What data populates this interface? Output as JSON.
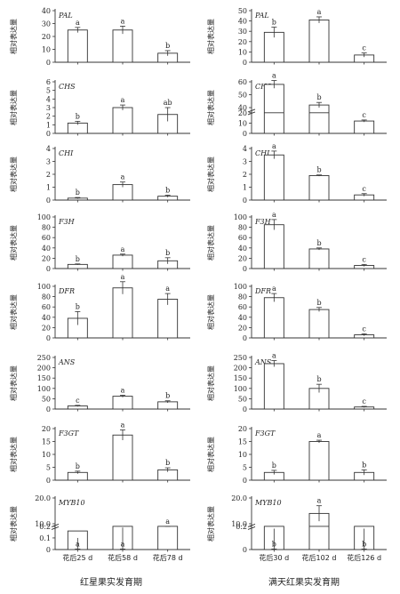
{
  "figure": {
    "x_axis_title_left": "红星果实发育期",
    "x_axis_title_right": "满天红果实发育期",
    "ylabel": "相对表达量"
  },
  "colors": {
    "bar_fill": "#ffffff",
    "stroke": "#333333",
    "text": "#222222"
  },
  "chart_data": [
    {
      "id": "PAL-left",
      "cultivar": "红星",
      "gene": "PAL",
      "type": "bar",
      "ylabel": "相对表达量",
      "ylim": [
        0,
        40
      ],
      "ticks": [
        0,
        10,
        20,
        30,
        40
      ],
      "categories": [
        "花后25 d",
        "花后58 d",
        "花后78 d"
      ],
      "values": [
        25,
        25,
        7
      ],
      "errors": [
        2,
        3,
        2
      ],
      "letters": [
        "a",
        "a",
        "b"
      ]
    },
    {
      "id": "PAL-right",
      "cultivar": "满天红",
      "gene": "PAL",
      "type": "bar",
      "ylabel": "相对表达量",
      "ylim": [
        0,
        50
      ],
      "ticks": [
        0,
        10,
        20,
        30,
        40,
        50
      ],
      "categories": [
        "花后30 d",
        "花后102 d",
        "花后126 d"
      ],
      "values": [
        29,
        41,
        7
      ],
      "errors": [
        5,
        3,
        2
      ],
      "letters": [
        "b",
        "a",
        "c"
      ]
    },
    {
      "id": "CHS-left",
      "cultivar": "红星",
      "gene": "CHS",
      "type": "bar",
      "ylabel": "相对表达量",
      "ylim": [
        0,
        6
      ],
      "ticks": [
        0,
        1,
        2,
        3,
        4,
        5,
        6
      ],
      "categories": [
        "花后25 d",
        "花后58 d",
        "花后78 d"
      ],
      "values": [
        1.2,
        3.0,
        2.2
      ],
      "errors": [
        0.2,
        0.3,
        0.8
      ],
      "letters": [
        "b",
        "a",
        "ab"
      ]
    },
    {
      "id": "CHS-right",
      "cultivar": "满天红",
      "gene": "CHS",
      "type": "bar",
      "ylabel": "相对表达量",
      "axis_break": true,
      "tick_labels": [
        "0",
        "10",
        "20",
        "40",
        "50",
        "60"
      ],
      "categories": [
        "花后30 d",
        "花后102 d",
        "花后126 d"
      ],
      "values": [
        58,
        42,
        12
      ],
      "errors": [
        3,
        2,
        1
      ],
      "letters": [
        "a",
        "b",
        "c"
      ]
    },
    {
      "id": "CHI-left",
      "cultivar": "红星",
      "gene": "CHI",
      "type": "bar",
      "ylabel": "相对表达量",
      "ylim": [
        0,
        4
      ],
      "ticks": [
        0,
        1,
        2,
        3,
        4
      ],
      "categories": [
        "花后25 d",
        "花后58 d",
        "花后78 d"
      ],
      "values": [
        0.15,
        1.2,
        0.3
      ],
      "errors": [
        0.05,
        0.2,
        0.08
      ],
      "letters": [
        "b",
        "a",
        "b"
      ]
    },
    {
      "id": "CHI-right",
      "cultivar": "满天红",
      "gene": "CHI",
      "type": "bar",
      "ylabel": "相对表达量",
      "ylim": [
        0,
        4
      ],
      "ticks": [
        0,
        1,
        2,
        3,
        4
      ],
      "categories": [
        "花后30 d",
        "花后102 d",
        "花后126 d"
      ],
      "values": [
        3.5,
        1.9,
        0.4
      ],
      "errors": [
        0.3,
        0.05,
        0.1
      ],
      "letters": [
        "a",
        "b",
        "c"
      ]
    },
    {
      "id": "F3H-left",
      "cultivar": "红星",
      "gene": "F3H",
      "type": "bar",
      "ylabel": "相对表达量",
      "ylim": [
        0,
        100
      ],
      "ticks": [
        0,
        20,
        40,
        60,
        80,
        100
      ],
      "categories": [
        "花后25 d",
        "花后58 d",
        "花后78 d"
      ],
      "values": [
        8,
        26,
        15
      ],
      "errors": [
        1,
        2,
        6
      ],
      "letters": [
        "b",
        "a",
        "b"
      ]
    },
    {
      "id": "F3H-right",
      "cultivar": "满天红",
      "gene": "F3H",
      "type": "bar",
      "ylabel": "相对表达量",
      "ylim": [
        0,
        100
      ],
      "ticks": [
        0,
        20,
        40,
        60,
        80,
        100
      ],
      "categories": [
        "花后30 d",
        "花后102 d",
        "花后126 d"
      ],
      "values": [
        85,
        38,
        6
      ],
      "errors": [
        10,
        2,
        2
      ],
      "letters": [
        "a",
        "b",
        "c"
      ]
    },
    {
      "id": "DFR-left",
      "cultivar": "红星",
      "gene": "DFR",
      "type": "bar",
      "ylabel": "相对表达量",
      "ylim": [
        0,
        100
      ],
      "ticks": [
        0,
        20,
        40,
        60,
        80,
        100
      ],
      "categories": [
        "花后25 d",
        "花后58 d",
        "花后78 d"
      ],
      "values": [
        38,
        97,
        75
      ],
      "errors": [
        13,
        12,
        11
      ],
      "letters": [
        "b",
        "a",
        "a"
      ]
    },
    {
      "id": "DFR-right",
      "cultivar": "满天红",
      "gene": "DFR",
      "type": "bar",
      "ylabel": "相对表达量",
      "ylim": [
        0,
        100
      ],
      "ticks": [
        0,
        20,
        40,
        60,
        80,
        100
      ],
      "categories": [
        "花后30 d",
        "花后102 d",
        "花后126 d"
      ],
      "values": [
        78,
        55,
        6
      ],
      "errors": [
        8,
        4,
        2
      ],
      "letters": [
        "a",
        "b",
        "c"
      ]
    },
    {
      "id": "ANS-left",
      "cultivar": "红星",
      "gene": "ANS",
      "type": "bar",
      "ylabel": "相对表达量",
      "ylim": [
        0,
        250
      ],
      "ticks": [
        0,
        50,
        100,
        150,
        200,
        250
      ],
      "categories": [
        "花后25 d",
        "花后58 d",
        "花后78 d"
      ],
      "values": [
        15,
        62,
        35
      ],
      "errors": [
        3,
        5,
        5
      ],
      "letters": [
        "c",
        "a",
        "b"
      ]
    },
    {
      "id": "ANS-right",
      "cultivar": "满天红",
      "gene": "ANS",
      "type": "bar",
      "ylabel": "相对表达量",
      "ylim": [
        0,
        250
      ],
      "ticks": [
        0,
        50,
        100,
        150,
        200,
        250
      ],
      "categories": [
        "花后30 d",
        "花后102 d",
        "花后126 d"
      ],
      "values": [
        220,
        100,
        10
      ],
      "errors": [
        15,
        20,
        3
      ],
      "letters": [
        "a",
        "b",
        "c"
      ]
    },
    {
      "id": "F3GT-left",
      "cultivar": "红星",
      "gene": "F3GT",
      "type": "bar",
      "ylabel": "相对表达量",
      "ylim": [
        0,
        20
      ],
      "ticks": [
        0,
        5,
        10,
        15,
        20
      ],
      "categories": [
        "花后25 d",
        "花后58 d",
        "花后78 d"
      ],
      "values": [
        3,
        17.5,
        4
      ],
      "errors": [
        0.5,
        2,
        0.8
      ],
      "letters": [
        "b",
        "a",
        "b"
      ]
    },
    {
      "id": "F3GT-right",
      "cultivar": "满天红",
      "gene": "F3GT",
      "type": "bar",
      "ylabel": "相对表达量",
      "ylim": [
        0,
        20
      ],
      "ticks": [
        0,
        5,
        10,
        15,
        20
      ],
      "categories": [
        "花后30 d",
        "花后102 d",
        "花后126 d"
      ],
      "values": [
        3,
        15,
        3
      ],
      "errors": [
        0.8,
        0.5,
        1
      ],
      "letters": [
        "b",
        "a",
        "b"
      ]
    },
    {
      "id": "MYB10-left",
      "cultivar": "红星",
      "gene": "MYB10",
      "type": "bar",
      "ylabel": "相对表达量",
      "axis_break": true,
      "tick_labels": [
        "0",
        "0.1",
        "0.2",
        "10.0",
        "20.0"
      ],
      "categories": [
        "花后25 d",
        "花后58 d",
        "花后78 d"
      ],
      "values": [
        0.16,
        0.2,
        0.2
      ],
      "errors": [
        0.06,
        0.01,
        0
      ],
      "letters": [
        "a",
        "a",
        "a"
      ]
    },
    {
      "id": "MYB10-right",
      "cultivar": "满天红",
      "gene": "MYB10",
      "type": "bar",
      "ylabel": "相对表达量",
      "axis_break": true,
      "tick_labels": [
        "0",
        "0.2",
        "10.0",
        "20.0"
      ],
      "categories": [
        "花后30 d",
        "花后102 d",
        "花后126 d"
      ],
      "values": [
        0.2,
        14,
        0.2
      ],
      "errors": [
        0.02,
        3,
        0.02
      ],
      "letters": [
        "b",
        "a",
        "b"
      ]
    }
  ]
}
